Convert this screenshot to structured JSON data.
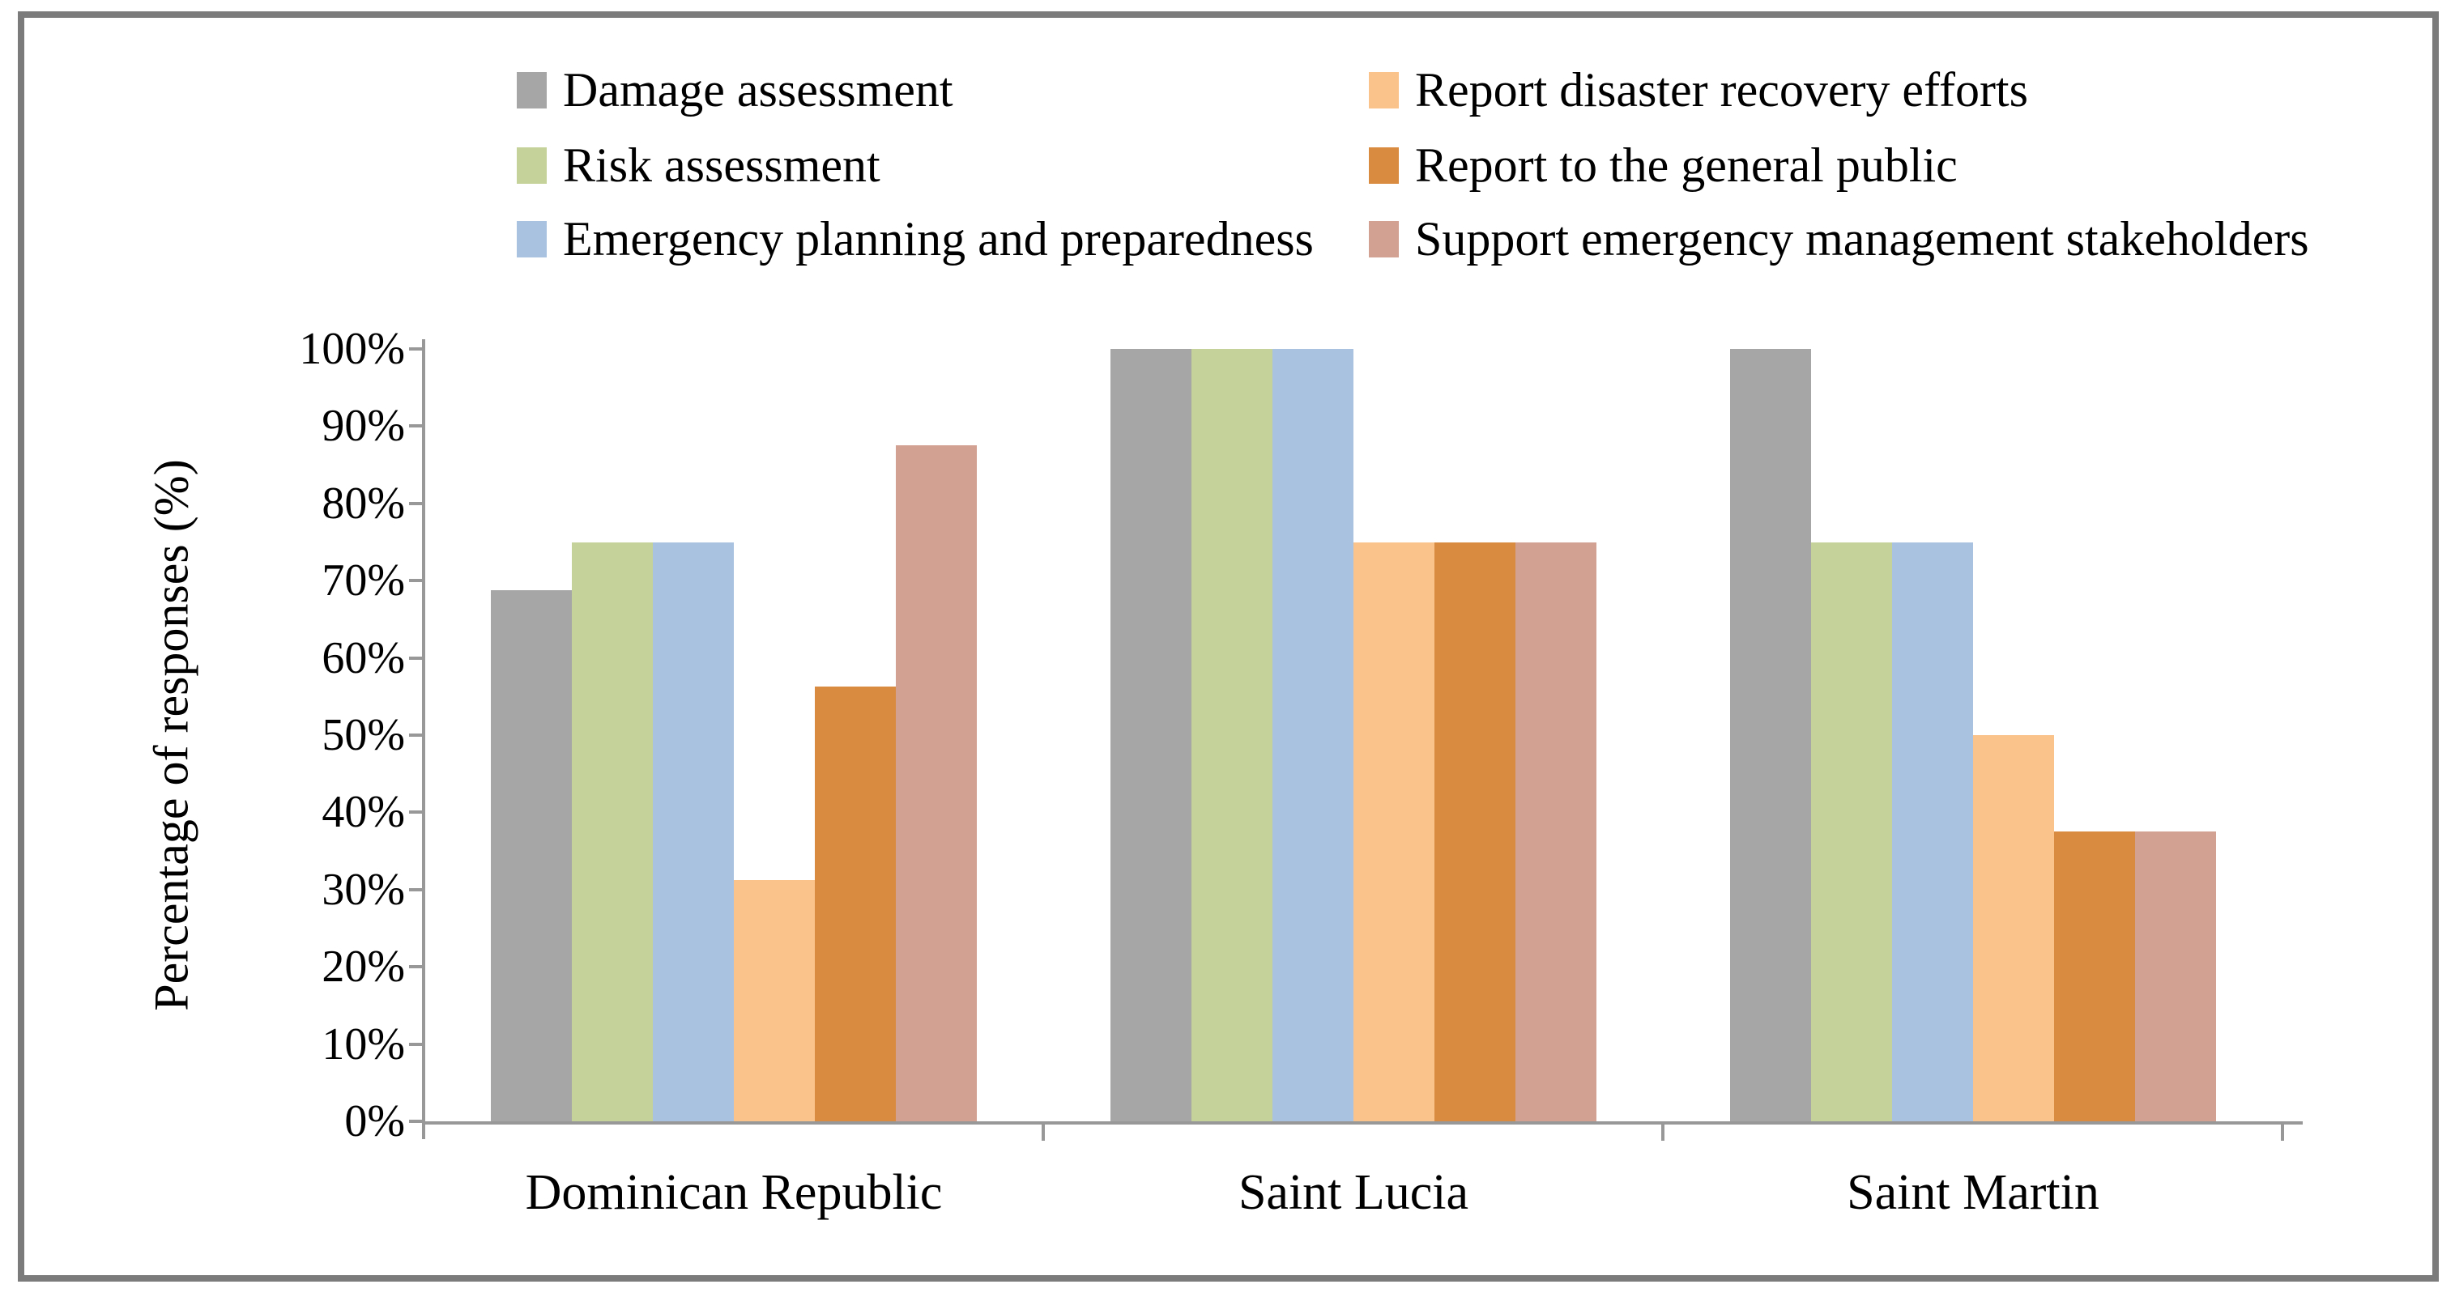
{
  "frame": {
    "border_color": "#7B7B7B",
    "background": "#FFFFFF"
  },
  "chart_data": {
    "type": "bar",
    "title": "",
    "xlabel": "",
    "ylabel": "Percentage of responses (%)",
    "categories": [
      "Dominican Republic",
      "Saint Lucia",
      "Saint Martin"
    ],
    "series": [
      {
        "name": "Damage assessment",
        "color": "#A6A6A6",
        "values": [
          68.75,
          100,
          100
        ]
      },
      {
        "name": "Risk assessment",
        "color": "#C5D29A",
        "values": [
          75,
          100,
          75
        ]
      },
      {
        "name": "Emergency planning and preparedness",
        "color": "#A9C2DF",
        "values": [
          75,
          100,
          75
        ]
      },
      {
        "name": "Report disaster recovery efforts",
        "color": "#FAC38C",
        "values": [
          31.25,
          75,
          50
        ]
      },
      {
        "name": "Report to the general public",
        "color": "#D98C40",
        "values": [
          56.25,
          75,
          37.5
        ]
      },
      {
        "name": "Support emergency management stakeholders",
        "color": "#D2A191",
        "values": [
          87.5,
          75,
          37.5
        ]
      }
    ],
    "ylim": [
      0,
      100
    ],
    "ytick_step": 10,
    "ytick_labels": [
      "0%",
      "10%",
      "20%",
      "30%",
      "40%",
      "50%",
      "60%",
      "70%",
      "80%",
      "90%",
      "100%"
    ],
    "grid": false,
    "legend_position": "top-two-columns",
    "axis_color": "#989898"
  }
}
